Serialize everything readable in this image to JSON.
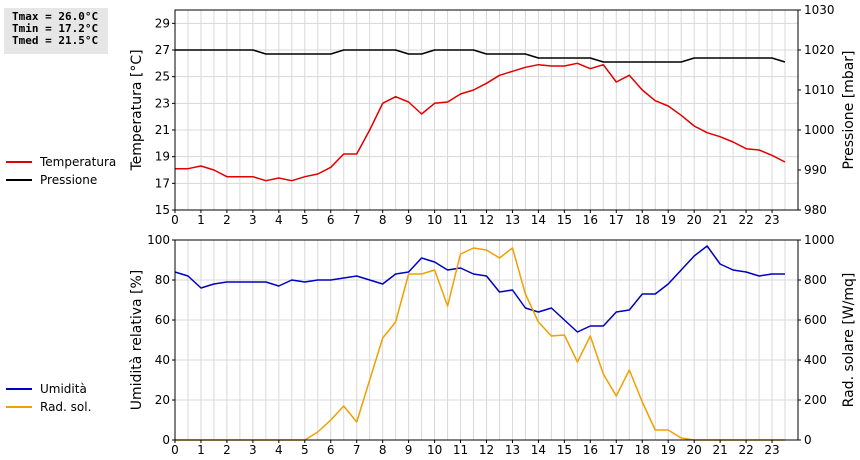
{
  "stats": {
    "tmax": "Tmax = 26.0°C",
    "tmin": "Tmin = 17.2°C",
    "tmed": "Tmed = 21.5°C"
  },
  "chart_data": [
    {
      "type": "line",
      "ylabel": "Temperatura [°C]",
      "y2label": "Pressione [mbar]",
      "xlim": [
        0,
        24
      ],
      "xticks": [
        "0",
        "1",
        "2",
        "3",
        "4",
        "5",
        "6",
        "7",
        "8",
        "9",
        "10",
        "11",
        "12",
        "13",
        "14",
        "15",
        "16",
        "17",
        "18",
        "19",
        "20",
        "21",
        "22",
        "23"
      ],
      "ylim": [
        15,
        30
      ],
      "yticks": [
        15,
        17,
        19,
        21,
        23,
        25,
        27,
        29
      ],
      "y2lim": [
        980,
        1030
      ],
      "y2ticks": [
        980,
        990,
        1000,
        1010,
        1020,
        1030
      ],
      "grid": true,
      "legend_position": "left",
      "series": [
        {
          "name": "Temperatura",
          "axis": "left",
          "color": "#e00000",
          "x": [
            0,
            0.5,
            1,
            1.5,
            2,
            2.5,
            3,
            3.5,
            4,
            4.5,
            5,
            5.5,
            6,
            6.5,
            7,
            7.5,
            8,
            8.5,
            9,
            9.5,
            10,
            10.5,
            11,
            11.5,
            12,
            12.5,
            13,
            13.5,
            14,
            14.5,
            15,
            15.5,
            16,
            16.5,
            17,
            17.5,
            18,
            18.5,
            19,
            19.5,
            20,
            20.5,
            21,
            21.5,
            22,
            22.5,
            23,
            23.5
          ],
          "values": [
            18.1,
            18.1,
            18.3,
            18.0,
            17.5,
            17.5,
            17.5,
            17.2,
            17.4,
            17.2,
            17.5,
            17.7,
            18.2,
            19.2,
            19.2,
            21.0,
            23.0,
            23.5,
            23.1,
            22.2,
            23.0,
            23.1,
            23.7,
            24.0,
            24.5,
            25.1,
            25.4,
            25.7,
            25.9,
            25.8,
            25.8,
            26.0,
            25.6,
            25.9,
            24.6,
            25.1,
            24.0,
            23.2,
            22.8,
            22.1,
            21.3,
            20.8,
            20.5,
            20.1,
            19.6,
            19.5,
            19.1,
            18.6
          ]
        },
        {
          "name": "Pressione",
          "axis": "right",
          "color": "#000000",
          "x": [
            0,
            1,
            2,
            3,
            3.5,
            4,
            5,
            6,
            6.5,
            7,
            8,
            8.5,
            9,
            9.5,
            10,
            11,
            11.5,
            12,
            13,
            13.5,
            14,
            15,
            16,
            16.5,
            17,
            18,
            19,
            19.5,
            20,
            21,
            22,
            23,
            23.5
          ],
          "values": [
            1020,
            1020,
            1020,
            1020,
            1019,
            1019,
            1019,
            1019,
            1020,
            1020,
            1020,
            1020,
            1019,
            1019,
            1020,
            1020,
            1020,
            1019,
            1019,
            1019,
            1018,
            1018,
            1018,
            1017,
            1017,
            1017,
            1017,
            1017,
            1018,
            1018,
            1018,
            1018,
            1017
          ]
        }
      ]
    },
    {
      "type": "line",
      "ylabel": "Umidità relativa [%]",
      "y2label": "Rad. solare [W/mq]",
      "xlim": [
        0,
        24
      ],
      "xticks": [
        "0",
        "1",
        "2",
        "3",
        "4",
        "5",
        "6",
        "7",
        "8",
        "9",
        "10",
        "11",
        "12",
        "13",
        "14",
        "15",
        "16",
        "17",
        "18",
        "19",
        "20",
        "21",
        "22",
        "23"
      ],
      "ylim": [
        0,
        100
      ],
      "yticks": [
        0,
        20,
        40,
        60,
        80,
        100
      ],
      "y2lim": [
        0,
        1000
      ],
      "y2ticks": [
        0,
        200,
        400,
        600,
        800,
        1000
      ],
      "grid": true,
      "legend_position": "left",
      "series": [
        {
          "name": "Umidità",
          "axis": "left",
          "color": "#0000c0",
          "x": [
            0,
            0.5,
            1,
            1.5,
            2,
            2.5,
            3,
            3.5,
            4,
            4.5,
            5,
            5.5,
            6,
            6.5,
            7,
            7.5,
            8,
            8.5,
            9,
            9.5,
            10,
            10.5,
            11,
            11.5,
            12,
            12.5,
            13,
            13.5,
            14,
            14.5,
            15,
            15.5,
            16,
            16.5,
            17,
            17.5,
            18,
            18.5,
            19,
            19.5,
            20,
            20.5,
            21,
            21.5,
            22,
            22.5,
            23,
            23.5
          ],
          "values": [
            84,
            82,
            76,
            78,
            79,
            79,
            79,
            79,
            77,
            80,
            79,
            80,
            80,
            81,
            82,
            80,
            78,
            83,
            84,
            91,
            89,
            85,
            86,
            83,
            82,
            74,
            75,
            66,
            64,
            66,
            60,
            54,
            57,
            57,
            64,
            65,
            73,
            73,
            78,
            85,
            92,
            97,
            88,
            85,
            84,
            82,
            83,
            83
          ]
        },
        {
          "name": "Rad. sol.",
          "axis": "right",
          "color": "#f0a000",
          "x": [
            0,
            0.5,
            1,
            1.5,
            2,
            2.5,
            3,
            3.5,
            4,
            4.5,
            5,
            5.5,
            6,
            6.5,
            7,
            7.5,
            8,
            8.5,
            9,
            9.5,
            10,
            10.5,
            11,
            11.5,
            12,
            12.5,
            13,
            13.5,
            14,
            14.5,
            15,
            15.5,
            16,
            16.5,
            17,
            17.5,
            18,
            18.5,
            19,
            19.5,
            20,
            20.5,
            21,
            21.5,
            22,
            22.5,
            23,
            23.5
          ],
          "values": [
            0,
            0,
            0,
            0,
            0,
            0,
            0,
            0,
            0,
            0,
            0,
            40,
            100,
            170,
            90,
            300,
            510,
            590,
            830,
            830,
            850,
            670,
            930,
            960,
            950,
            910,
            960,
            730,
            590,
            520,
            525,
            390,
            520,
            330,
            220,
            350,
            190,
            50,
            50,
            10,
            0,
            0,
            0,
            0,
            0,
            0,
            0,
            0
          ]
        }
      ]
    }
  ]
}
